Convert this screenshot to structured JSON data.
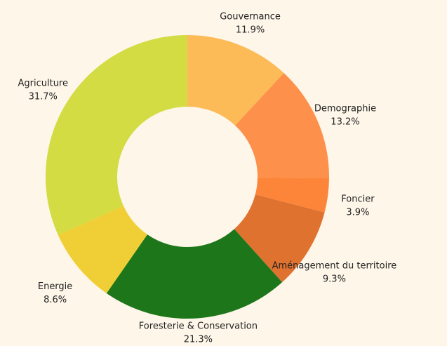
{
  "chart_data": {
    "type": "donut",
    "categories": [
      "Gouvernance",
      "Demographie",
      "Foncier",
      "Aménagement du territoire",
      "Foresterie & Conservation",
      "Energie",
      "Agriculture"
    ],
    "values": [
      11.9,
      13.2,
      3.9,
      9.3,
      21.3,
      8.6,
      31.7
    ],
    "value_labels": [
      "11.9%",
      "13.2%",
      "3.9%",
      "9.3%",
      "21.3%",
      "8.6%",
      "31.7%"
    ],
    "colors": [
      "#fdbb57",
      "#fd914b",
      "#fd853a",
      "#e07230",
      "#1e761a",
      "#f0cf36",
      "#d3dc42"
    ]
  }
}
